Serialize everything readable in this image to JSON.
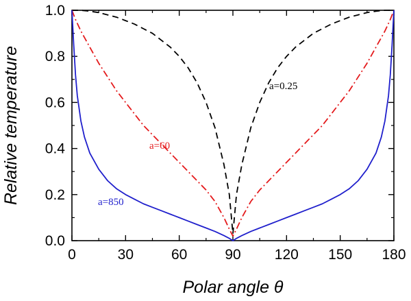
{
  "chart_data": {
    "type": "line",
    "title": "",
    "xlabel": "Polar angle θ",
    "ylabel": "Relative temperature",
    "xlim": [
      0,
      180
    ],
    "ylim": [
      0,
      1.0
    ],
    "xticks": [
      0,
      30,
      60,
      90,
      120,
      150,
      180
    ],
    "yticks": [
      0.0,
      0.2,
      0.4,
      0.6,
      0.8,
      1.0
    ],
    "xtick_labels": [
      "0",
      "30",
      "60",
      "90",
      "120",
      "150",
      "180"
    ],
    "ytick_labels": [
      "0.0",
      "0.2",
      "0.4",
      "0.6",
      "0.8",
      "1.0"
    ],
    "grid": false,
    "series": [
      {
        "name": "a=0.25",
        "color": "#000000",
        "style": "dashed",
        "label_text": "a=0.25",
        "x": [
          0,
          5,
          10,
          15,
          20,
          25,
          30,
          35,
          40,
          45,
          50,
          55,
          60,
          65,
          70,
          75,
          80,
          85,
          88,
          90,
          92,
          95,
          100,
          105,
          110,
          115,
          120,
          125,
          130,
          135,
          140,
          145,
          150,
          155,
          160,
          165,
          170,
          175,
          180
        ],
        "y": [
          1.0,
          1.0,
          0.996,
          0.99,
          0.98,
          0.97,
          0.955,
          0.94,
          0.92,
          0.9,
          0.87,
          0.84,
          0.8,
          0.75,
          0.685,
          0.6,
          0.49,
          0.33,
          0.2,
          0.03,
          0.2,
          0.33,
          0.49,
          0.6,
          0.685,
          0.75,
          0.8,
          0.84,
          0.87,
          0.9,
          0.92,
          0.94,
          0.955,
          0.97,
          0.98,
          0.99,
          0.996,
          1.0,
          1.0
        ]
      },
      {
        "name": "a=60",
        "color": "#e41a1c",
        "style": "dashdot",
        "label_text": "a=60",
        "x": [
          0,
          2,
          5,
          10,
          15,
          20,
          25,
          30,
          35,
          40,
          45,
          50,
          55,
          60,
          65,
          70,
          75,
          80,
          85,
          88,
          90,
          92,
          95,
          100,
          105,
          110,
          115,
          120,
          125,
          130,
          135,
          140,
          145,
          150,
          155,
          160,
          165,
          170,
          175,
          178,
          180
        ],
        "y": [
          1.0,
          0.96,
          0.91,
          0.84,
          0.77,
          0.71,
          0.65,
          0.6,
          0.55,
          0.5,
          0.46,
          0.42,
          0.38,
          0.34,
          0.3,
          0.26,
          0.22,
          0.17,
          0.1,
          0.05,
          0.02,
          0.05,
          0.1,
          0.17,
          0.22,
          0.26,
          0.3,
          0.34,
          0.38,
          0.42,
          0.46,
          0.5,
          0.55,
          0.6,
          0.65,
          0.71,
          0.77,
          0.84,
          0.91,
          0.96,
          1.0
        ]
      },
      {
        "name": "a=850",
        "color": "#1f1fcc",
        "style": "solid",
        "label_text": "a=850",
        "x": [
          0,
          1,
          2,
          3,
          5,
          7,
          10,
          15,
          20,
          25,
          30,
          35,
          40,
          45,
          50,
          55,
          60,
          65,
          70,
          75,
          80,
          85,
          88,
          90,
          92,
          95,
          100,
          105,
          110,
          115,
          120,
          125,
          130,
          135,
          140,
          145,
          150,
          155,
          160,
          165,
          170,
          173,
          175,
          177,
          178,
          179,
          180
        ],
        "y": [
          1.0,
          0.85,
          0.72,
          0.63,
          0.52,
          0.45,
          0.38,
          0.31,
          0.26,
          0.225,
          0.2,
          0.18,
          0.16,
          0.145,
          0.13,
          0.115,
          0.1,
          0.085,
          0.07,
          0.055,
          0.04,
          0.022,
          0.01,
          0.0,
          0.01,
          0.022,
          0.04,
          0.055,
          0.07,
          0.085,
          0.1,
          0.115,
          0.13,
          0.145,
          0.16,
          0.18,
          0.2,
          0.225,
          0.26,
          0.31,
          0.38,
          0.45,
          0.52,
          0.63,
          0.72,
          0.85,
          1.0
        ]
      }
    ]
  }
}
